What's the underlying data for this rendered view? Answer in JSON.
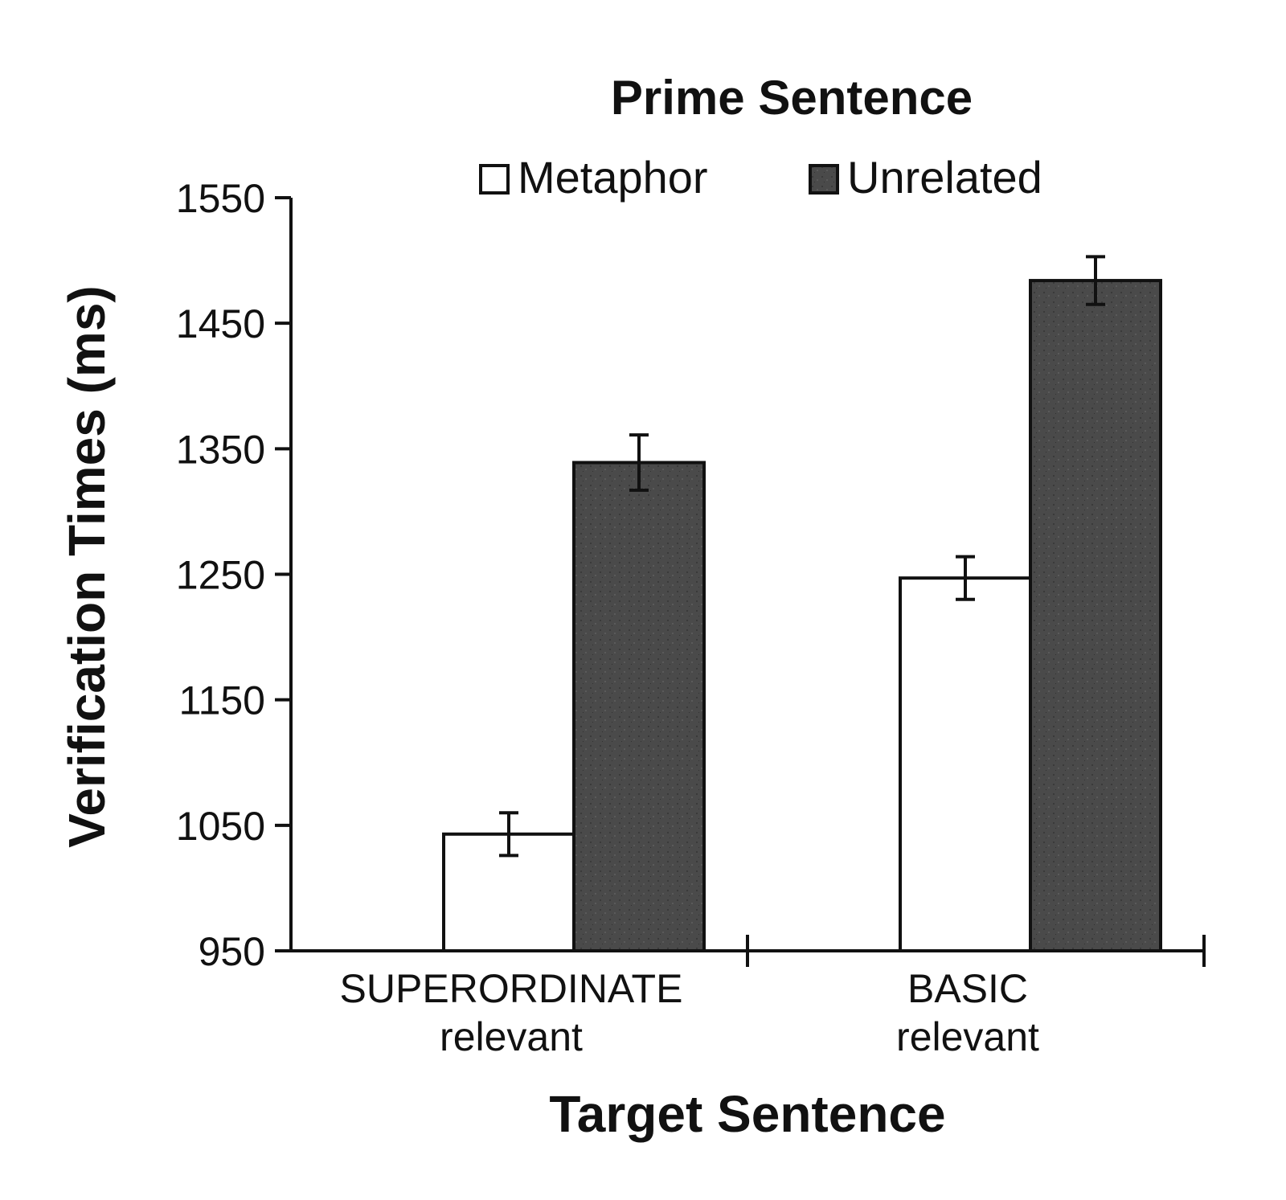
{
  "chart_data": {
    "type": "bar",
    "categories": [
      [
        "SUPERORDINATE",
        "relevant"
      ],
      [
        "BASIC",
        "relevant"
      ]
    ],
    "series": [
      {
        "name": "Metaphor",
        "values": [
          1043,
          1247
        ],
        "errors": [
          17,
          17
        ],
        "color": "#ffffff"
      },
      {
        "name": "Unrelated",
        "values": [
          1339,
          1484
        ],
        "errors": [
          22,
          19
        ],
        "color": "#4a4a4a"
      }
    ],
    "legend_title": "Prime Sentence",
    "legend_position": "top",
    "xlabel": "Target Sentence",
    "ylabel": "Verification Times (ms)",
    "ylim": [
      950,
      1550
    ],
    "yticks": [
      950,
      1050,
      1150,
      1250,
      1350,
      1450,
      1550
    ],
    "grid": false
  }
}
